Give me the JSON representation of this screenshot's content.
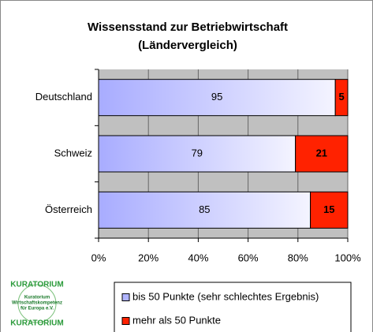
{
  "chart_data": {
    "type": "stacked_barh",
    "title": "Wissensstand zur Betriebwirtschaft",
    "subtitle": "(Ländervergleich)",
    "categories": [
      "Deutschland",
      "Schweiz",
      "Österreich"
    ],
    "series": [
      {
        "name": "bis 50 Punkte (sehr schlechtes Ergebnis)",
        "color": "#b0b4ff",
        "values": [
          95,
          79,
          85
        ]
      },
      {
        "name": "mehr als 50 Punkte",
        "color": "#ff2200",
        "values": [
          5,
          21,
          15
        ]
      }
    ],
    "xlim": [
      0,
      100
    ],
    "xticks": [
      {
        "value": 0,
        "label": "0%"
      },
      {
        "value": 20,
        "label": "20%"
      },
      {
        "value": 40,
        "label": "40%"
      },
      {
        "value": 60,
        "label": "60%"
      },
      {
        "value": 80,
        "label": "80%"
      },
      {
        "value": 100,
        "label": "100%"
      }
    ],
    "grid": true,
    "legend": "bottom",
    "logo": {
      "name": "KURATORIUM",
      "lines": [
        "Kuratorium",
        "Wirtschaftskompetenz",
        "für Europa e.V."
      ]
    }
  }
}
